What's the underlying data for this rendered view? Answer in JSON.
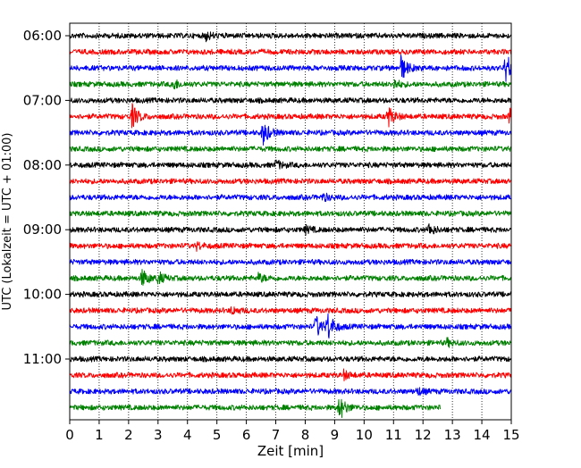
{
  "chart_data": {
    "type": "line",
    "title": "",
    "xlabel": "Zeit  [min]",
    "ylabel": "UTC (Lokalzeit = UTC + 01:00)",
    "xlim": [
      0,
      15
    ],
    "x_ticks": [
      0,
      1,
      2,
      3,
      4,
      5,
      6,
      7,
      8,
      9,
      10,
      11,
      12,
      13,
      14,
      15
    ],
    "x_tick_labels": [
      "0",
      "1",
      "2",
      "3",
      "4",
      "5",
      "6",
      "7",
      "8",
      "9",
      "10",
      "11",
      "12",
      "13",
      "14",
      "15"
    ],
    "y_tick_labels": [
      "06:00",
      "07:00",
      "08:00",
      "09:00",
      "10:00",
      "11:00"
    ],
    "grid": "vertical-dotted",
    "legend": "none",
    "row_minutes": 15,
    "colors": [
      "#000000",
      "#ff0000",
      "#0000ff",
      "#008000"
    ],
    "rows": [
      {
        "start": "06:00",
        "color": "#000000",
        "end_min": 15,
        "events": [
          {
            "t": 4.6,
            "amp": 1.3
          }
        ]
      },
      {
        "start": "06:15",
        "color": "#ff0000",
        "end_min": 15,
        "events": []
      },
      {
        "start": "06:30",
        "color": "#0000ff",
        "end_min": 15,
        "events": [
          {
            "t": 11.25,
            "amp": 3.5
          },
          {
            "t": 14.8,
            "amp": 4.5
          }
        ]
      },
      {
        "start": "06:45",
        "color": "#008000",
        "end_min": 15,
        "events": [
          {
            "t": 3.5,
            "amp": 1.5
          },
          {
            "t": 11.0,
            "amp": 1.3
          }
        ]
      },
      {
        "start": "07:00",
        "color": "#000000",
        "end_min": 15,
        "events": []
      },
      {
        "start": "07:15",
        "color": "#ff0000",
        "end_min": 15,
        "events": [
          {
            "t": 2.1,
            "amp": 3.5
          },
          {
            "t": 10.8,
            "amp": 3.0
          },
          {
            "t": 14.95,
            "amp": 3.5
          }
        ]
      },
      {
        "start": "07:30",
        "color": "#0000ff",
        "end_min": 15,
        "events": [
          {
            "t": 6.55,
            "amp": 3.5
          }
        ]
      },
      {
        "start": "07:45",
        "color": "#008000",
        "end_min": 15,
        "events": []
      },
      {
        "start": "08:00",
        "color": "#000000",
        "end_min": 15,
        "events": [
          {
            "t": 7.0,
            "amp": 1.2
          }
        ]
      },
      {
        "start": "08:15",
        "color": "#ff0000",
        "end_min": 15,
        "events": []
      },
      {
        "start": "08:30",
        "color": "#0000ff",
        "end_min": 15,
        "events": [
          {
            "t": 8.6,
            "amp": 1.0
          }
        ]
      },
      {
        "start": "08:45",
        "color": "#008000",
        "end_min": 15,
        "events": []
      },
      {
        "start": "09:00",
        "color": "#000000",
        "end_min": 15,
        "events": [
          {
            "t": 8.0,
            "amp": 1.0
          },
          {
            "t": 12.2,
            "amp": 1.5
          }
        ]
      },
      {
        "start": "09:15",
        "color": "#ff0000",
        "end_min": 15,
        "events": [
          {
            "t": 4.3,
            "amp": 1.0
          }
        ]
      },
      {
        "start": "09:30",
        "color": "#0000ff",
        "end_min": 15,
        "events": []
      },
      {
        "start": "09:45",
        "color": "#008000",
        "end_min": 15,
        "events": [
          {
            "t": 2.45,
            "amp": 2.5
          },
          {
            "t": 3.0,
            "amp": 1.6
          },
          {
            "t": 6.4,
            "amp": 1.2
          }
        ]
      },
      {
        "start": "10:00",
        "color": "#000000",
        "end_min": 15,
        "events": []
      },
      {
        "start": "10:15",
        "color": "#ff0000",
        "end_min": 15,
        "events": [
          {
            "t": 5.5,
            "amp": 1.0
          }
        ]
      },
      {
        "start": "10:30",
        "color": "#0000ff",
        "end_min": 15,
        "events": [
          {
            "t": 8.35,
            "amp": 3.2
          },
          {
            "t": 8.75,
            "amp": 4.0
          }
        ]
      },
      {
        "start": "10:45",
        "color": "#008000",
        "end_min": 15,
        "events": [
          {
            "t": 12.8,
            "amp": 1.0
          }
        ]
      },
      {
        "start": "11:00",
        "color": "#000000",
        "end_min": 15,
        "events": []
      },
      {
        "start": "11:15",
        "color": "#ff0000",
        "end_min": 15,
        "events": [
          {
            "t": 9.3,
            "amp": 1.2
          }
        ]
      },
      {
        "start": "11:30",
        "color": "#0000ff",
        "end_min": 15,
        "events": [
          {
            "t": 11.8,
            "amp": 1.0
          }
        ]
      },
      {
        "start": "11:45",
        "color": "#008000",
        "end_min": 12.6,
        "events": [
          {
            "t": 9.15,
            "amp": 3.5
          }
        ]
      }
    ]
  }
}
